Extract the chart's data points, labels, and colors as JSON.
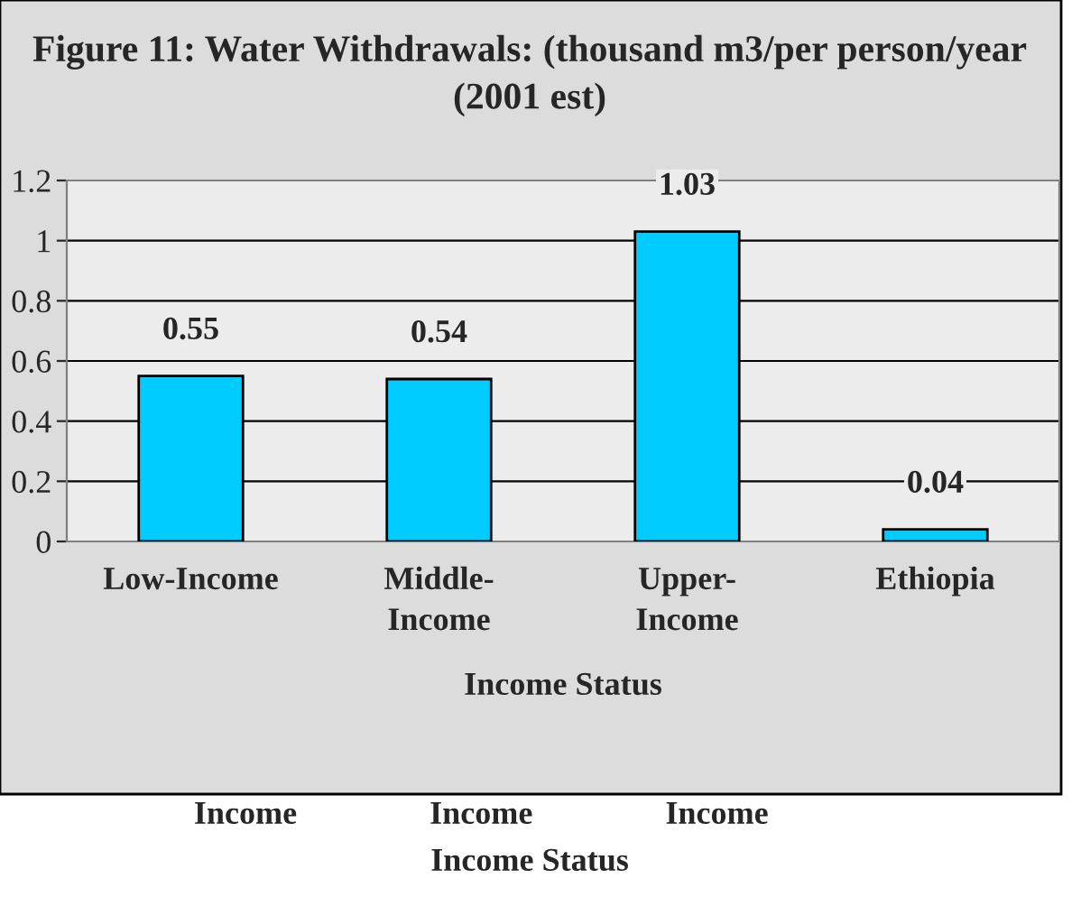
{
  "chart_data": {
    "type": "bar",
    "title": "Figure 11: Water Withdrawals: (thousand m3/per person/year (2001 est)",
    "xlabel": "Income Status",
    "categories": [
      "Low-Income",
      "Middle-\nIncome",
      "Upper-\nIncome",
      "Ethiopia"
    ],
    "values": [
      0.55,
      0.54,
      1.03,
      0.04
    ],
    "color": "#00ccff",
    "ylim": [
      0,
      1.2
    ],
    "yticks": [
      0,
      0.2,
      0.4,
      0.6,
      0.8,
      1,
      1.2
    ],
    "grid": "y",
    "data_labels": true,
    "legend": false,
    "annotations": [
      "Income",
      "Income",
      "Income",
      "Income Status"
    ]
  }
}
